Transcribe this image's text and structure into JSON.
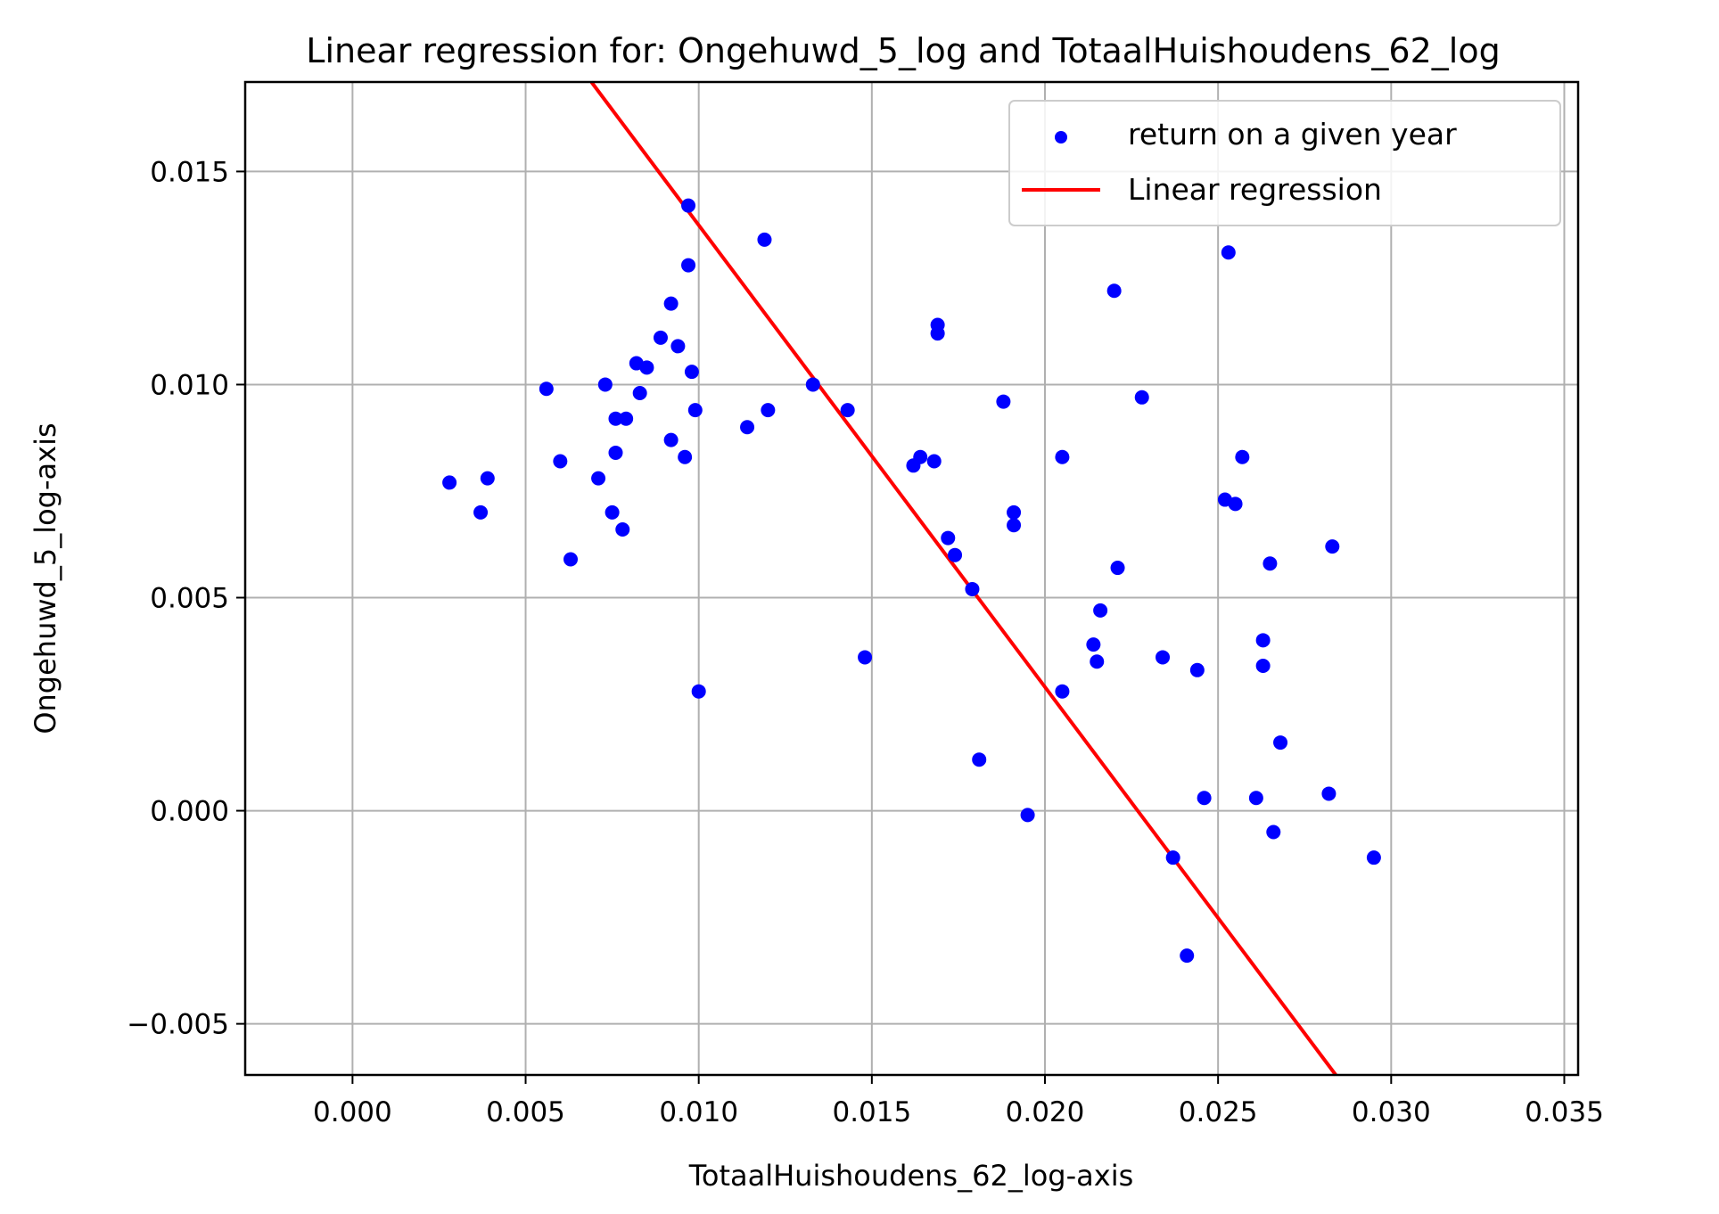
{
  "chart_data": {
    "type": "scatter",
    "title": "Linear regression for: Ongehuwd_5_log and TotaalHuishoudens_62_log",
    "xlabel": "TotaalHuishoudens_62_log-axis",
    "ylabel": "Ongehuwd_5_log-axis",
    "xlim": [
      -0.0031,
      0.0354
    ],
    "ylim": [
      -0.0062,
      0.0171
    ],
    "xticks": [
      0.0,
      0.005,
      0.01,
      0.015,
      0.02,
      0.025,
      0.03,
      0.035
    ],
    "xtick_labels": [
      "0.000",
      "0.005",
      "0.010",
      "0.015",
      "0.020",
      "0.025",
      "0.030",
      "0.035"
    ],
    "yticks": [
      -0.005,
      0.0,
      0.005,
      0.01,
      0.015
    ],
    "ytick_labels": [
      "−0.005",
      "0.000",
      "0.005",
      "0.010",
      "0.015"
    ],
    "grid": true,
    "legend_position": "top-right",
    "series": [
      {
        "name": "return on a given year",
        "kind": "scatter",
        "color": "#0000ff",
        "points": [
          [
            0.0028,
            0.0077
          ],
          [
            0.0037,
            0.007
          ],
          [
            0.0039,
            0.0078
          ],
          [
            0.0056,
            0.0099
          ],
          [
            0.006,
            0.0082
          ],
          [
            0.0063,
            0.0059
          ],
          [
            0.0071,
            0.0078
          ],
          [
            0.0073,
            0.01
          ],
          [
            0.0075,
            0.007
          ],
          [
            0.0076,
            0.0092
          ],
          [
            0.0076,
            0.0084
          ],
          [
            0.0078,
            0.0066
          ],
          [
            0.0079,
            0.0092
          ],
          [
            0.0082,
            0.0105
          ],
          [
            0.0083,
            0.0098
          ],
          [
            0.0085,
            0.0104
          ],
          [
            0.0089,
            0.0111
          ],
          [
            0.0092,
            0.0119
          ],
          [
            0.0092,
            0.0087
          ],
          [
            0.0094,
            0.0109
          ],
          [
            0.0096,
            0.0083
          ],
          [
            0.0097,
            0.0128
          ],
          [
            0.0097,
            0.0142
          ],
          [
            0.0098,
            0.0103
          ],
          [
            0.0099,
            0.0094
          ],
          [
            0.01,
            0.0028
          ],
          [
            0.0114,
            0.009
          ],
          [
            0.0119,
            0.0134
          ],
          [
            0.012,
            0.0094
          ],
          [
            0.0133,
            0.01
          ],
          [
            0.0143,
            0.0094
          ],
          [
            0.0148,
            0.0036
          ],
          [
            0.0162,
            0.0081
          ],
          [
            0.0164,
            0.0083
          ],
          [
            0.0168,
            0.0082
          ],
          [
            0.0169,
            0.0114
          ],
          [
            0.0169,
            0.0112
          ],
          [
            0.0172,
            0.0064
          ],
          [
            0.0174,
            0.006
          ],
          [
            0.0179,
            0.0052
          ],
          [
            0.0181,
            0.0012
          ],
          [
            0.0188,
            0.0096
          ],
          [
            0.0191,
            0.007
          ],
          [
            0.0191,
            0.0067
          ],
          [
            0.0195,
            -0.0001
          ],
          [
            0.0205,
            0.0083
          ],
          [
            0.0205,
            0.0028
          ],
          [
            0.0214,
            0.0039
          ],
          [
            0.0215,
            0.0035
          ],
          [
            0.0216,
            0.0047
          ],
          [
            0.022,
            0.0122
          ],
          [
            0.0221,
            0.0057
          ],
          [
            0.0228,
            0.0097
          ],
          [
            0.0234,
            0.0036
          ],
          [
            0.0237,
            -0.0011
          ],
          [
            0.0241,
            -0.0034
          ],
          [
            0.0244,
            0.0033
          ],
          [
            0.0246,
            0.0003
          ],
          [
            0.0252,
            0.0073
          ],
          [
            0.0253,
            0.0131
          ],
          [
            0.0255,
            0.0072
          ],
          [
            0.0257,
            0.0083
          ],
          [
            0.0261,
            0.0003
          ],
          [
            0.0263,
            0.004
          ],
          [
            0.0263,
            0.0034
          ],
          [
            0.0265,
            0.0058
          ],
          [
            0.0266,
            -0.0005
          ],
          [
            0.0268,
            0.0016
          ],
          [
            0.0282,
            0.0004
          ],
          [
            0.0283,
            0.0062
          ],
          [
            0.0295,
            -0.0011
          ]
        ]
      },
      {
        "name": "Linear regression",
        "kind": "line",
        "color": "#ff0000",
        "x": [
          0.0069,
          0.0284
        ],
        "y": [
          0.0171,
          -0.0062
        ]
      }
    ]
  }
}
